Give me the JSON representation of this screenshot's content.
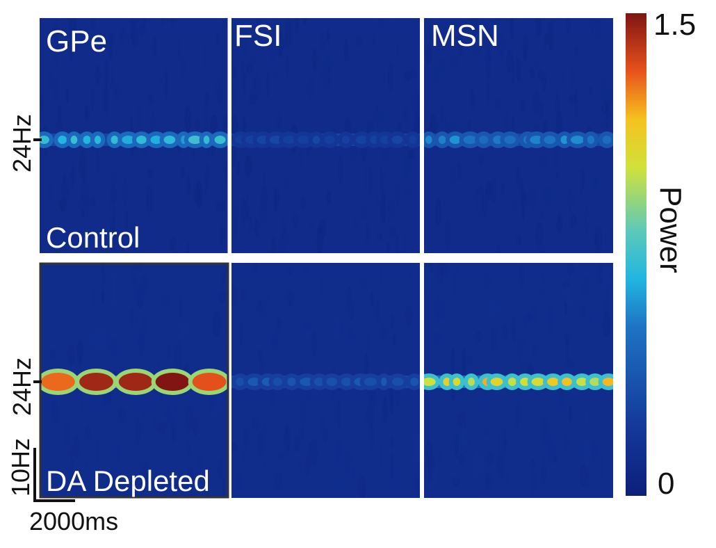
{
  "chart_data": {
    "type": "heatmap",
    "panels": [
      {
        "row": "Control",
        "column": "GPe",
        "band_hz": 24,
        "band_peak_power": 0.75,
        "background_power": 0.1
      },
      {
        "row": "Control",
        "column": "FSI",
        "band_hz": 24,
        "band_peak_power": 0.3,
        "background_power": 0.1
      },
      {
        "row": "Control",
        "column": "MSN",
        "band_hz": 24,
        "band_peak_power": 0.6,
        "background_power": 0.1
      },
      {
        "row": "DA Depleted",
        "column": "GPe",
        "band_hz": 24,
        "band_peak_power": 1.5,
        "background_power": 0.12
      },
      {
        "row": "DA Depleted",
        "column": "FSI",
        "band_hz": 24,
        "band_peak_power": 0.4,
        "background_power": 0.12
      },
      {
        "row": "DA Depleted",
        "column": "MSN",
        "band_hz": 24,
        "band_peak_power": 1.2,
        "background_power": 0.12
      }
    ],
    "column_labels": [
      "GPe",
      "FSI",
      "MSN"
    ],
    "row_labels": [
      "Control",
      "DA Depleted"
    ],
    "ytick_label": "24Hz",
    "scalebar_y_label": "10Hz",
    "scalebar_x_label": "2000ms",
    "colorbar": {
      "label": "Power",
      "min": 0,
      "max": 1.5,
      "min_label": "0",
      "max_label": "1.5",
      "colormap": "jet"
    }
  }
}
